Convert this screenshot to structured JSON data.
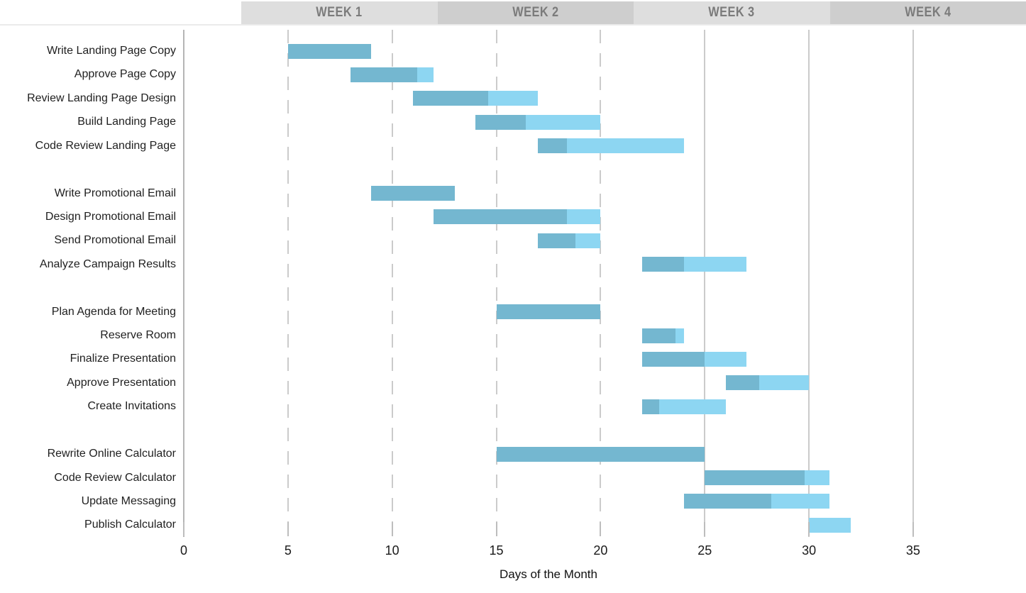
{
  "header": {
    "weeks": [
      {
        "label": "WEEK 1",
        "color": "#dedede"
      },
      {
        "label": "WEEK 2",
        "color": "#cecece"
      },
      {
        "label": "WEEK 3",
        "color": "#dedede"
      },
      {
        "label": "WEEK 4",
        "color": "#cecece"
      }
    ],
    "text_color": "#7b7b7b"
  },
  "chart_data": {
    "type": "bar",
    "variant": "gantt",
    "title": "",
    "xlabel": "Days of the Month",
    "xticks": [
      0,
      5,
      10,
      15,
      20,
      25,
      30,
      35
    ],
    "xlim": [
      0,
      40
    ],
    "grid": true,
    "dashed_grid_days": [
      5,
      10,
      15,
      20
    ],
    "solid_grid_days": [
      25,
      30,
      35
    ],
    "groups": [
      {
        "tasks": [
          {
            "label": "Write Landing Page Copy",
            "start": 5,
            "end": 9,
            "percent_complete": 100
          },
          {
            "label": "Approve Page Copy",
            "start": 8,
            "end": 12,
            "percent_complete": 80
          },
          {
            "label": "Review Landing Page Design",
            "start": 11,
            "end": 17,
            "percent_complete": 60
          },
          {
            "label": "Build Landing Page",
            "start": 14,
            "end": 20,
            "percent_complete": 40
          },
          {
            "label": "Code Review Landing Page",
            "start": 17,
            "end": 24,
            "percent_complete": 20
          }
        ]
      },
      {
        "tasks": [
          {
            "label": "Write Promotional Email",
            "start": 9,
            "end": 13,
            "percent_complete": 100
          },
          {
            "label": "Design Promotional Email",
            "start": 12,
            "end": 20,
            "percent_complete": 80
          },
          {
            "label": "Send Promotional Email",
            "start": 17,
            "end": 20,
            "percent_complete": 60
          },
          {
            "label": "Analyze Campaign Results",
            "start": 22,
            "end": 27,
            "percent_complete": 40
          }
        ]
      },
      {
        "tasks": [
          {
            "label": "Plan Agenda for Meeting",
            "start": 15,
            "end": 20,
            "percent_complete": 100
          },
          {
            "label": "Reserve Room",
            "start": 22,
            "end": 24,
            "percent_complete": 80
          },
          {
            "label": "Finalize Presentation",
            "start": 22,
            "end": 27,
            "percent_complete": 60
          },
          {
            "label": "Approve Presentation",
            "start": 26,
            "end": 30,
            "percent_complete": 40
          },
          {
            "label": "Create Invitations",
            "start": 22,
            "end": 26,
            "percent_complete": 20
          }
        ]
      },
      {
        "tasks": [
          {
            "label": "Rewrite Online Calculator",
            "start": 15,
            "end": 25,
            "percent_complete": 100
          },
          {
            "label": "Code Review Calculator",
            "start": 25,
            "end": 31,
            "percent_complete": 80
          },
          {
            "label": "Update Messaging",
            "start": 24,
            "end": 31,
            "percent_complete": 60
          },
          {
            "label": "Publish Calculator",
            "start": 30,
            "end": 32,
            "percent_complete": 0
          }
        ]
      }
    ],
    "colors": {
      "complete": "#74b7d0",
      "remaining": "#8dd6f2",
      "gridline": "#cbcbcb",
      "spine": "#b5b5b5",
      "tick_label": "#1a1a1a",
      "task_label": "#1f1f1f"
    },
    "legend": null
  }
}
